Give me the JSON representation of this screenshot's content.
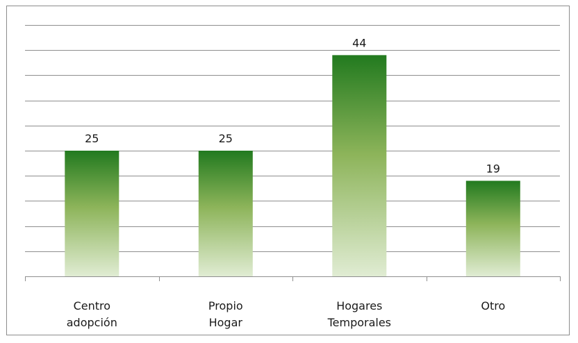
{
  "chart_data": {
    "type": "bar",
    "categories": [
      [
        "Centro",
        "adopción"
      ],
      [
        "Propio",
        "Hogar"
      ],
      [
        "Hogares",
        "Temporales"
      ],
      [
        "Otro"
      ]
    ],
    "values": [
      25,
      25,
      44,
      19
    ],
    "data_labels": [
      "25",
      "25",
      "44",
      "19"
    ],
    "ylim": [
      0,
      50
    ],
    "grid": true,
    "gridline_step": 5,
    "y_tick_labels_shown": false,
    "legend": "none",
    "bar_gradient": {
      "top": "#227a1f",
      "mid": "#8db45a",
      "bottom": "#e0ecd3"
    }
  }
}
